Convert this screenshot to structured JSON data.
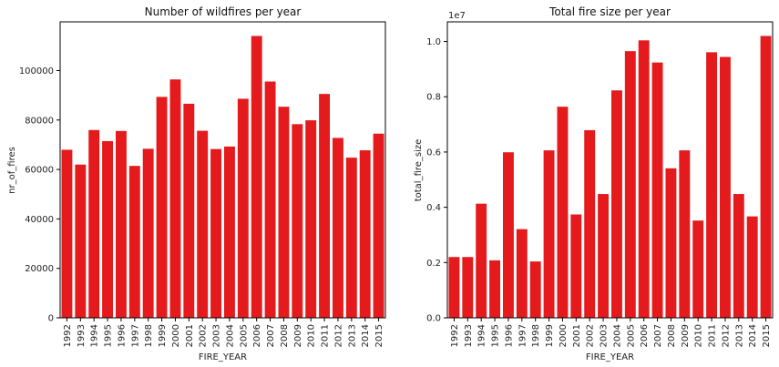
{
  "chart_data": [
    {
      "type": "bar",
      "title": "Number of wildfires per year",
      "xlabel": "FIRE_YEAR",
      "ylabel": "nr_of_fires",
      "categories": [
        "1992",
        "1993",
        "1994",
        "1995",
        "1996",
        "1997",
        "1998",
        "1999",
        "2000",
        "2001",
        "2002",
        "2003",
        "2004",
        "2005",
        "2006",
        "2007",
        "2008",
        "2009",
        "2010",
        "2011",
        "2012",
        "2013",
        "2014",
        "2015"
      ],
      "values": [
        67975,
        61989,
        75955,
        71472,
        75574,
        61450,
        68370,
        89363,
        96416,
        86587,
        75656,
        68261,
        69279,
        88604,
        114004,
        95573,
        85378,
        78325,
        79889,
        90552,
        72769,
        64780,
        67753,
        74491
      ],
      "ylim": [
        0,
        119704
      ],
      "yticks": [
        0,
        20000,
        40000,
        60000,
        80000,
        100000
      ],
      "ytick_labels": [
        "0",
        "20000",
        "40000",
        "60000",
        "80000",
        "100000"
      ],
      "bar_color": "#e41a1c",
      "grid": false
    },
    {
      "type": "bar",
      "title": "Total fire size per year",
      "xlabel": "FIRE_YEAR",
      "ylabel": "total_fire_size",
      "offset_label": "1e7",
      "categories": [
        "1992",
        "1993",
        "1994",
        "1995",
        "1996",
        "1997",
        "1998",
        "1999",
        "2000",
        "2001",
        "2002",
        "2003",
        "2004",
        "2005",
        "2006",
        "2007",
        "2008",
        "2009",
        "2010",
        "2011",
        "2012",
        "2013",
        "2014",
        "2015"
      ],
      "values": [
        2200000,
        2200000,
        4130000,
        2080000,
        5990000,
        3210000,
        2040000,
        6060000,
        7640000,
        3740000,
        6790000,
        4480000,
        8230000,
        9650000,
        10040000,
        9240000,
        5410000,
        6060000,
        3520000,
        9610000,
        9440000,
        4480000,
        3670000,
        10200000
      ],
      "ylim": [
        0,
        10710000
      ],
      "yticks": [
        0,
        2000000,
        4000000,
        6000000,
        8000000,
        10000000
      ],
      "ytick_labels": [
        "0.0",
        "0.2",
        "0.4",
        "0.6",
        "0.8",
        "1.0"
      ],
      "bar_color": "#e41a1c",
      "grid": false
    }
  ]
}
